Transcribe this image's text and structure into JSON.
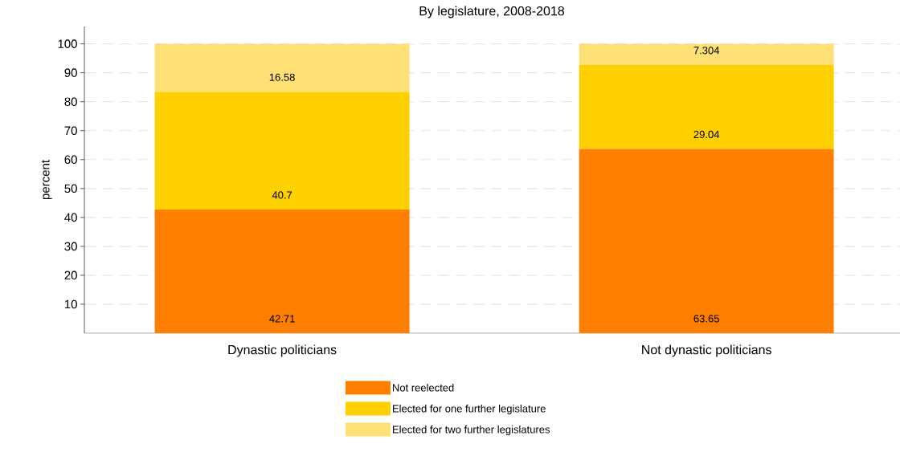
{
  "chart_data": {
    "type": "bar",
    "stacked": true,
    "title": "By legislature, 2008-2018",
    "ylabel": "percent",
    "categories": [
      "Dynastic politicians",
      "Not dynastic politicians"
    ],
    "series": [
      {
        "name": "Not reelected",
        "color": "#ff8000",
        "values": [
          42.71,
          63.65
        ]
      },
      {
        "name": "Elected for one further legislature",
        "color": "#ffd000",
        "values": [
          40.7,
          29.04
        ]
      },
      {
        "name": "Elected for two further legislatures",
        "color": "#ffe075",
        "values": [
          16.58,
          7.304
        ]
      }
    ],
    "ylim": [
      0,
      106
    ],
    "yticks": [
      10,
      20,
      30,
      40,
      50,
      60,
      70,
      80,
      90,
      100
    ],
    "grid": "y",
    "legend": "bottom",
    "data_labels": true
  }
}
